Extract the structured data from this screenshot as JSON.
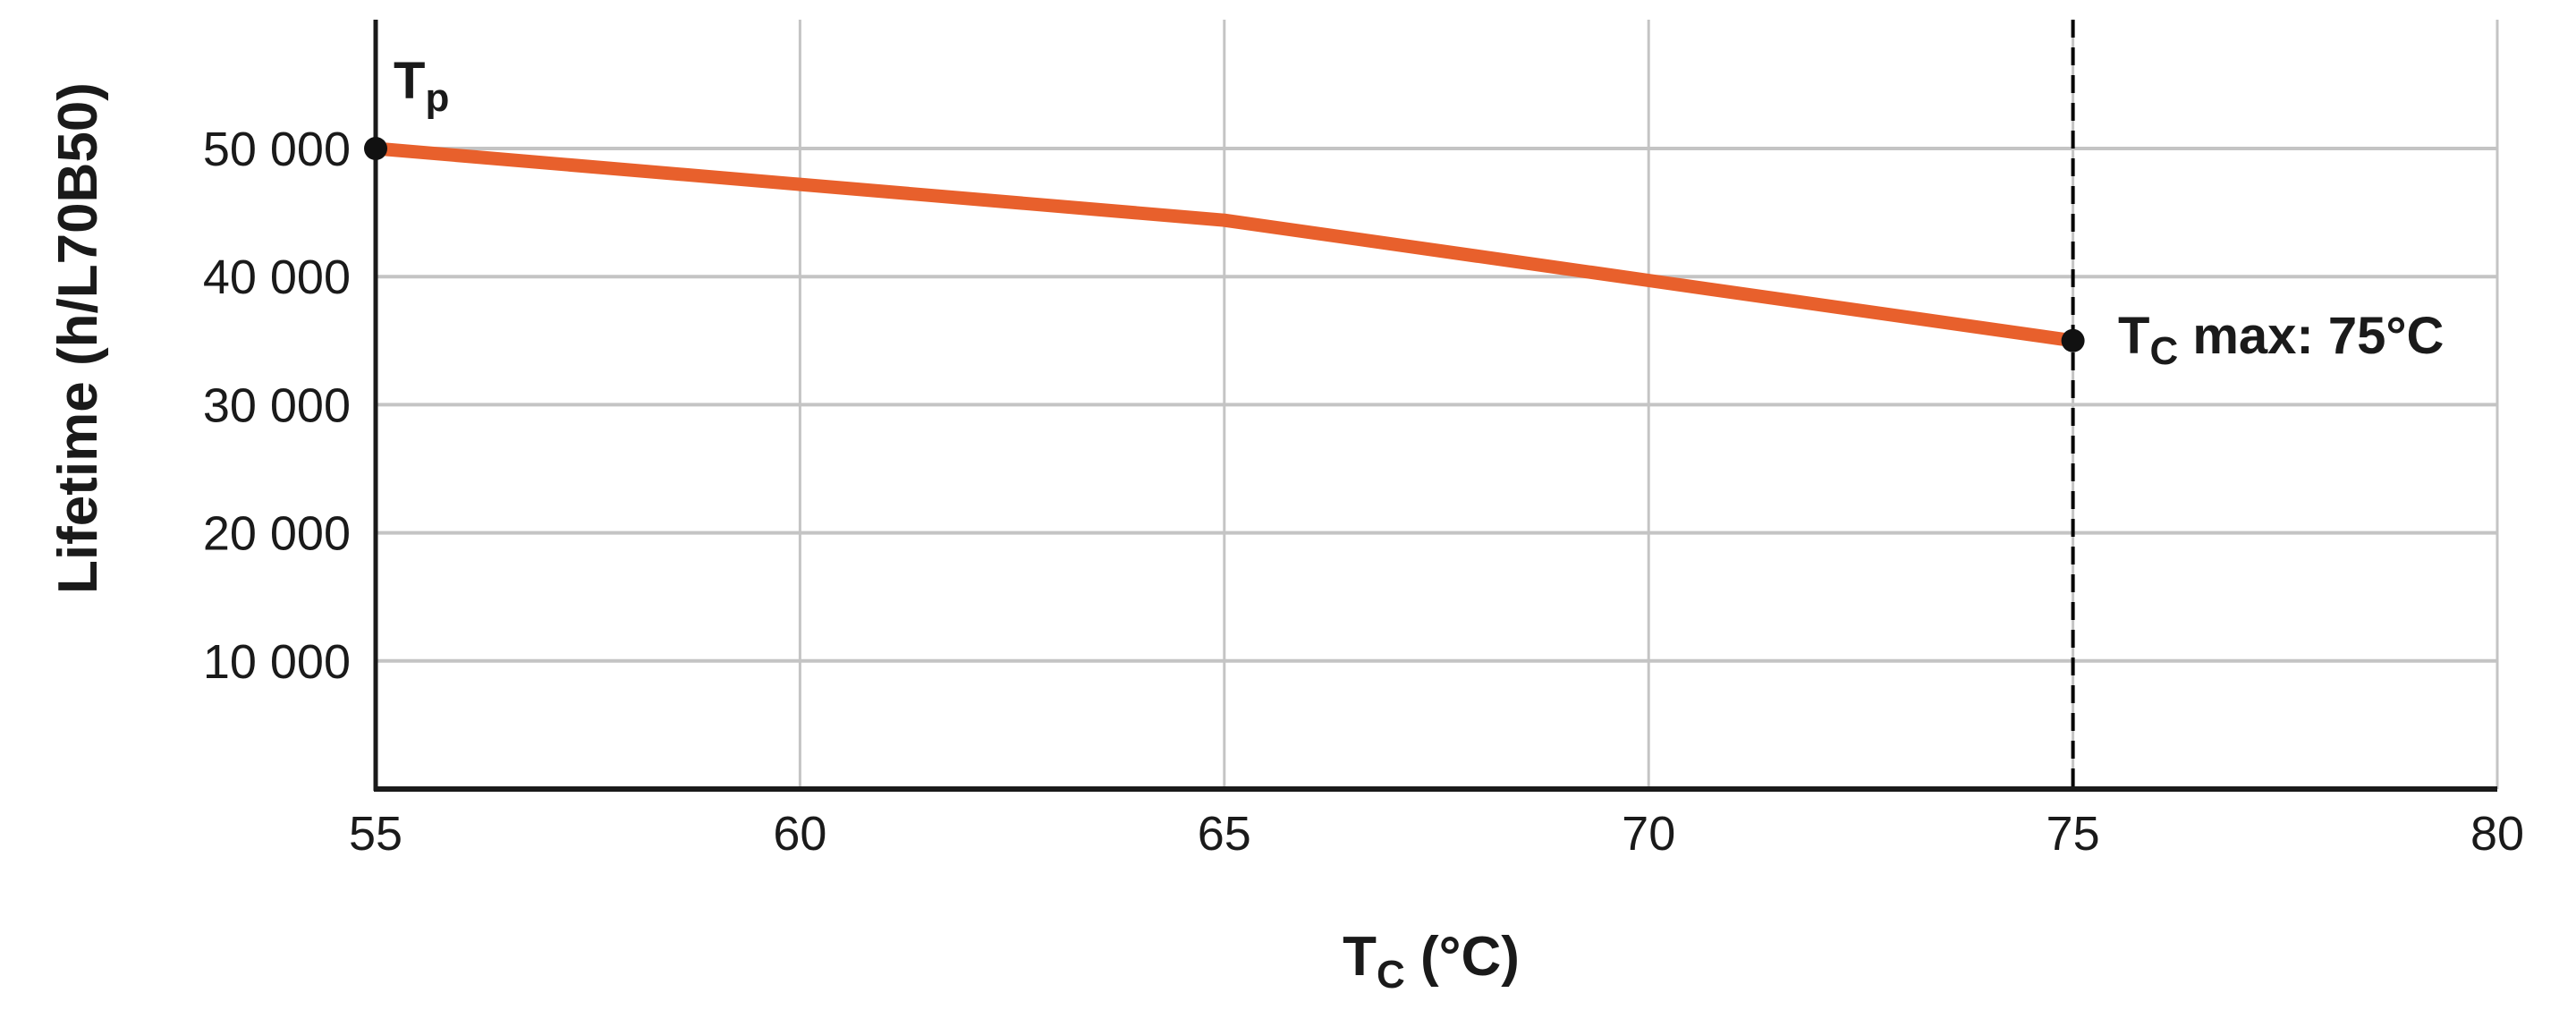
{
  "chart_data": {
    "type": "line",
    "title": "",
    "xlabel": "Tc (°C)",
    "xlabel_main": "T",
    "xlabel_sub": "C",
    "xlabel_rest": " (°C)",
    "ylabel": "Lifetime (h/L70B50)",
    "xlim": [
      55,
      80
    ],
    "ylim": [
      0,
      60000
    ],
    "x_ticks": [
      55,
      60,
      65,
      70,
      75,
      80
    ],
    "x_tick_labels": [
      "55",
      "60",
      "65",
      "70",
      "75",
      "80"
    ],
    "y_ticks": [
      10000,
      20000,
      30000,
      40000,
      50000
    ],
    "y_tick_labels": [
      "10 000",
      "20 000",
      "30 000",
      "40 000",
      "50 000"
    ],
    "grid": true,
    "series": [
      {
        "name": "Lifetime",
        "color": "#E8602C",
        "x": [
          55,
          60,
          65,
          70,
          75
        ],
        "values": [
          50000,
          47200,
          44400,
          39700,
          35000
        ]
      }
    ],
    "annotations": [
      {
        "label_main": "T",
        "label_sub": "p",
        "label": "Tp",
        "x": 55,
        "y": 50000
      },
      {
        "label_main": "T",
        "label_sub": "C",
        "label_rest": " max: 75°C",
        "label": "Tc max: 75°C",
        "x": 75,
        "y": 35000
      }
    ],
    "reference_lines": [
      {
        "type": "vertical",
        "x": 75,
        "style": "dashed",
        "color": "#000000"
      }
    ],
    "legend": "none"
  },
  "colors": {
    "line": "#E8602C",
    "grid": "#c4c4c4",
    "axis": "#1a1a1a",
    "marker": "#111111"
  }
}
